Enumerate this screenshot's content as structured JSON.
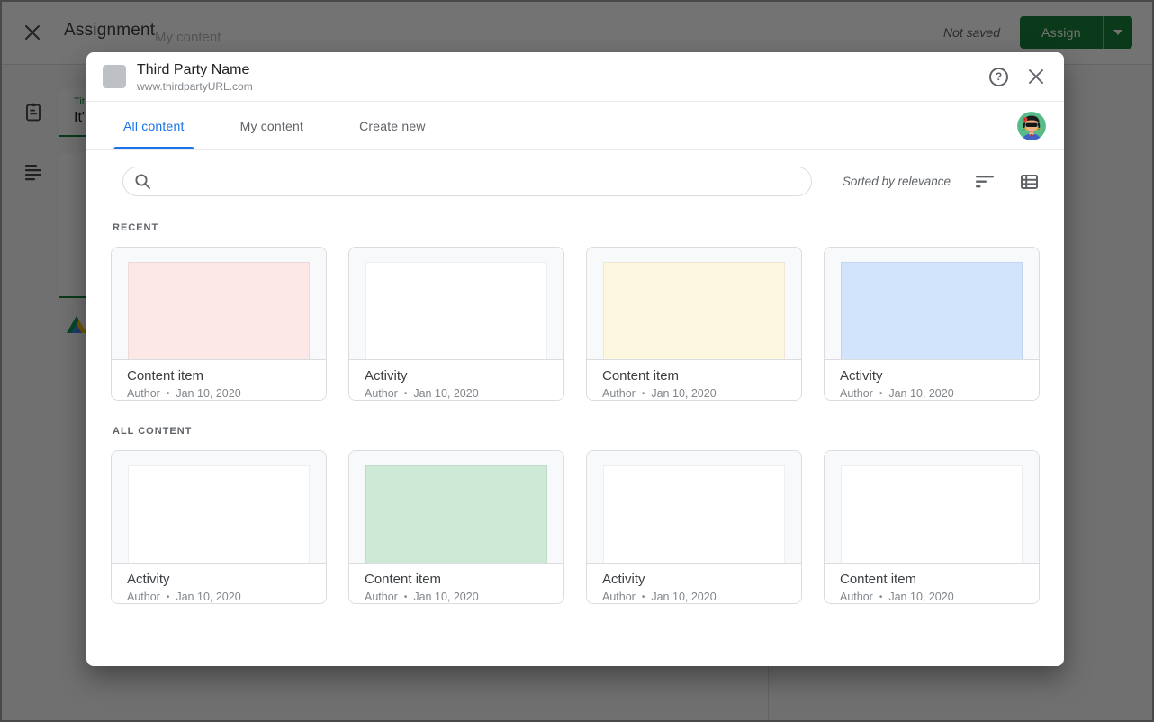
{
  "colors": {
    "tab_active_blue": "#1a73e8",
    "classroom_green": "#188038",
    "avatar_bg": "#57bb8a",
    "logo_gray": "#bdc1c6"
  },
  "topbar": {
    "title": "Assignment",
    "ghost_text": "My content",
    "status": "Not saved",
    "assign_label": "Assign"
  },
  "editor": {
    "title_label_visible": "Tit",
    "title_value_visible": "It'"
  },
  "modal": {
    "header": {
      "title": "Third Party Name",
      "url": "www.thirdpartyURL.com"
    },
    "tabs": [
      {
        "label": "All content",
        "active": true
      },
      {
        "label": "My content",
        "active": false
      },
      {
        "label": "Create new",
        "active": false
      }
    ],
    "toolbar": {
      "search_placeholder": "",
      "search_value": "",
      "sorted_text": "Sorted by relevance"
    },
    "meta_separator": "•",
    "sections": [
      {
        "heading": "RECENT",
        "items": [
          {
            "title": "Content item",
            "author": "Author",
            "date": "Jan 10, 2020",
            "thumb_color": "#fce8e6"
          },
          {
            "title": "Activity",
            "author": "Author",
            "date": "Jan 10, 2020",
            "thumb_color": "#ffffff"
          },
          {
            "title": "Content item",
            "author": "Author",
            "date": "Jan 10, 2020",
            "thumb_color": "#fef7e0"
          },
          {
            "title": "Activity",
            "author": "Author",
            "date": "Jan 10, 2020",
            "thumb_color": "#d2e3fc"
          }
        ]
      },
      {
        "heading": "ALL CONTENT",
        "items": [
          {
            "title": "Activity",
            "author": "Author",
            "date": "Jan 10, 2020",
            "thumb_color": "#ffffff"
          },
          {
            "title": "Content item",
            "author": "Author",
            "date": "Jan 10, 2020",
            "thumb_color": "#ceead6"
          },
          {
            "title": "Activity",
            "author": "Author",
            "date": "Jan 10, 2020",
            "thumb_color": "#ffffff"
          },
          {
            "title": "Content item",
            "author": "Author",
            "date": "Jan 10, 2020",
            "thumb_color": "#ffffff"
          }
        ]
      }
    ]
  }
}
